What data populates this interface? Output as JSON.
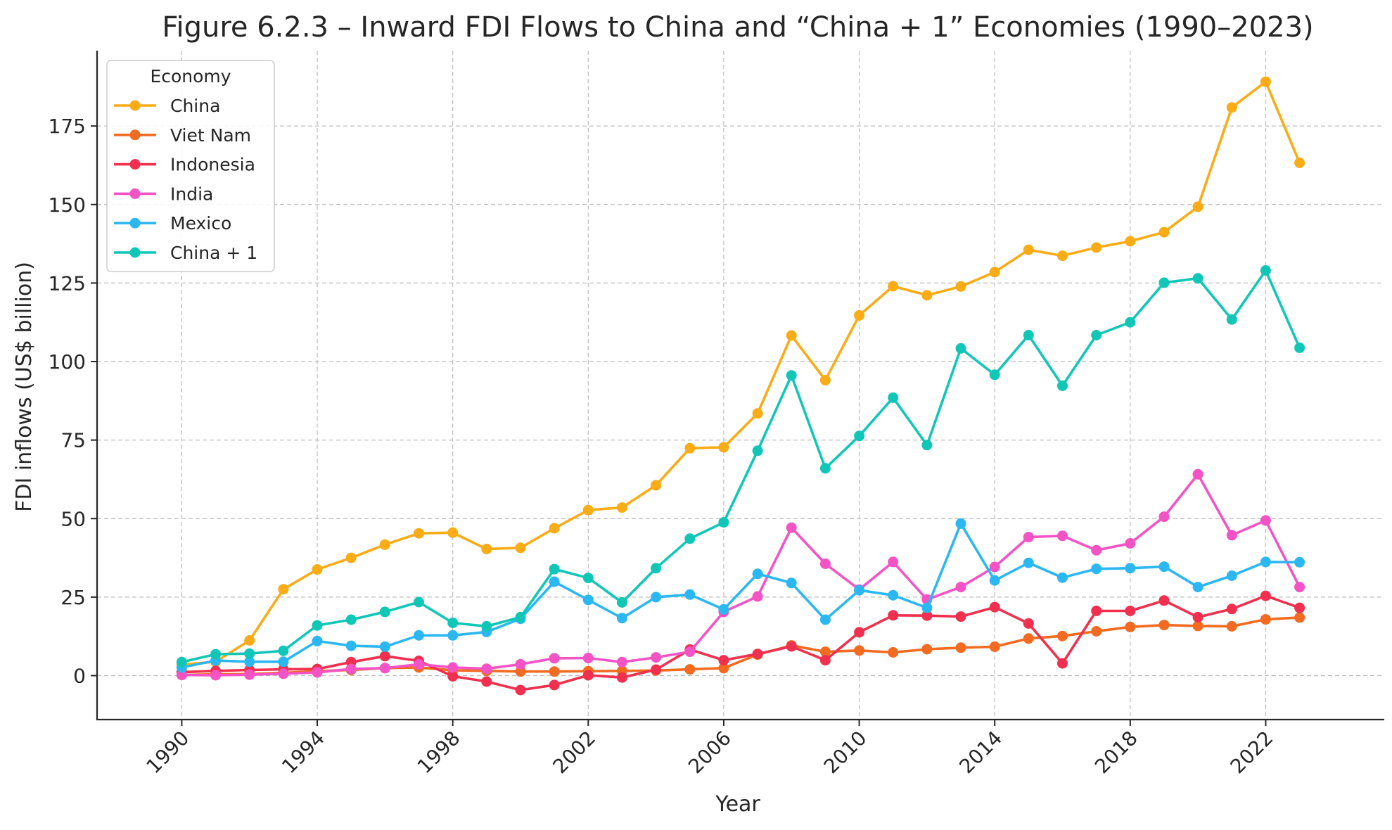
{
  "chart_data": {
    "type": "line",
    "title": "Figure 6.2.3 – Inward FDI Flows to China and “China + 1” Economies (1990–2023)",
    "xlabel": "Year",
    "ylabel": "FDI inflows (US$ billion)",
    "xlim": [
      1987.5,
      2025.5
    ],
    "ylim": [
      -14,
      199
    ],
    "xticks": [
      1990,
      1994,
      1998,
      2002,
      2006,
      2010,
      2014,
      2018,
      2022
    ],
    "yticks": [
      0,
      25,
      50,
      75,
      100,
      125,
      150,
      175
    ],
    "grid": true,
    "legend": {
      "title": "Economy",
      "position": "top-left"
    },
    "x": [
      1990,
      1991,
      1992,
      1993,
      1994,
      1995,
      1996,
      1997,
      1998,
      1999,
      2000,
      2001,
      2002,
      2003,
      2004,
      2005,
      2006,
      2007,
      2008,
      2009,
      2010,
      2011,
      2012,
      2013,
      2014,
      2015,
      2016,
      2017,
      2018,
      2019,
      2020,
      2021,
      2022,
      2023
    ],
    "series": [
      {
        "name": "China",
        "color": "#F9AC16",
        "values": [
          3.5,
          4.4,
          11.2,
          27.5,
          33.8,
          37.5,
          41.7,
          45.3,
          45.5,
          40.3,
          40.7,
          46.9,
          52.7,
          53.5,
          60.6,
          72.4,
          72.7,
          83.5,
          108.3,
          94.1,
          114.7,
          124.0,
          121.1,
          123.9,
          128.5,
          135.6,
          133.7,
          136.3,
          138.3,
          141.2,
          149.3,
          180.9,
          189.1,
          163.3
        ]
      },
      {
        "name": "Viet Nam",
        "color": "#F26B21",
        "values": [
          0.2,
          0.4,
          0.5,
          0.9,
          1.4,
          1.8,
          2.4,
          2.6,
          1.7,
          1.5,
          1.3,
          1.3,
          1.4,
          1.5,
          1.6,
          2.0,
          2.4,
          6.7,
          9.6,
          7.6,
          8.0,
          7.4,
          8.4,
          8.9,
          9.2,
          11.8,
          12.6,
          14.1,
          15.5,
          16.1,
          15.8,
          15.7,
          17.9,
          18.5
        ]
      },
      {
        "name": "Indonesia",
        "color": "#F0304E",
        "values": [
          1.1,
          1.5,
          1.8,
          2.0,
          2.1,
          4.3,
          6.2,
          4.7,
          -0.2,
          -1.9,
          -4.6,
          -3.0,
          0.1,
          -0.6,
          1.9,
          8.3,
          4.9,
          6.9,
          9.3,
          4.9,
          13.8,
          19.2,
          19.1,
          18.8,
          21.8,
          16.6,
          3.9,
          20.6,
          20.6,
          23.9,
          18.6,
          21.2,
          25.4,
          21.6
        ]
      },
      {
        "name": "India",
        "color": "#F453C6",
        "values": [
          0.2,
          0.1,
          0.3,
          0.6,
          1.0,
          2.1,
          2.4,
          3.6,
          2.6,
          2.2,
          3.6,
          5.5,
          5.6,
          4.3,
          5.8,
          7.6,
          20.3,
          25.2,
          47.1,
          35.6,
          27.4,
          36.2,
          24.2,
          28.2,
          34.6,
          44.1,
          44.5,
          39.9,
          42.1,
          50.6,
          64.1,
          44.7,
          49.4,
          28.2
        ]
      },
      {
        "name": "Mexico",
        "color": "#2BB8F2",
        "values": [
          2.6,
          4.8,
          4.4,
          4.4,
          11.0,
          9.5,
          9.2,
          12.8,
          12.8,
          13.9,
          18.1,
          29.9,
          24.1,
          18.3,
          25.0,
          25.8,
          21.1,
          32.4,
          29.5,
          17.8,
          27.2,
          25.6,
          21.6,
          48.4,
          30.3,
          35.9,
          31.2,
          34.0,
          34.2,
          34.7,
          28.2,
          31.8,
          36.2,
          36.1
        ]
      },
      {
        "name": "China + 1",
        "color": "#10C7B7",
        "values": [
          4.3,
          6.8,
          7.0,
          7.9,
          16.0,
          17.8,
          20.3,
          23.4,
          16.8,
          15.7,
          18.6,
          33.9,
          31.1,
          23.3,
          34.2,
          43.6,
          48.8,
          71.6,
          95.6,
          66.0,
          76.3,
          88.5,
          73.4,
          104.2,
          95.8,
          108.4,
          92.3,
          108.4,
          112.5,
          125.1,
          126.5,
          113.4,
          129.0,
          104.4
        ]
      }
    ]
  }
}
